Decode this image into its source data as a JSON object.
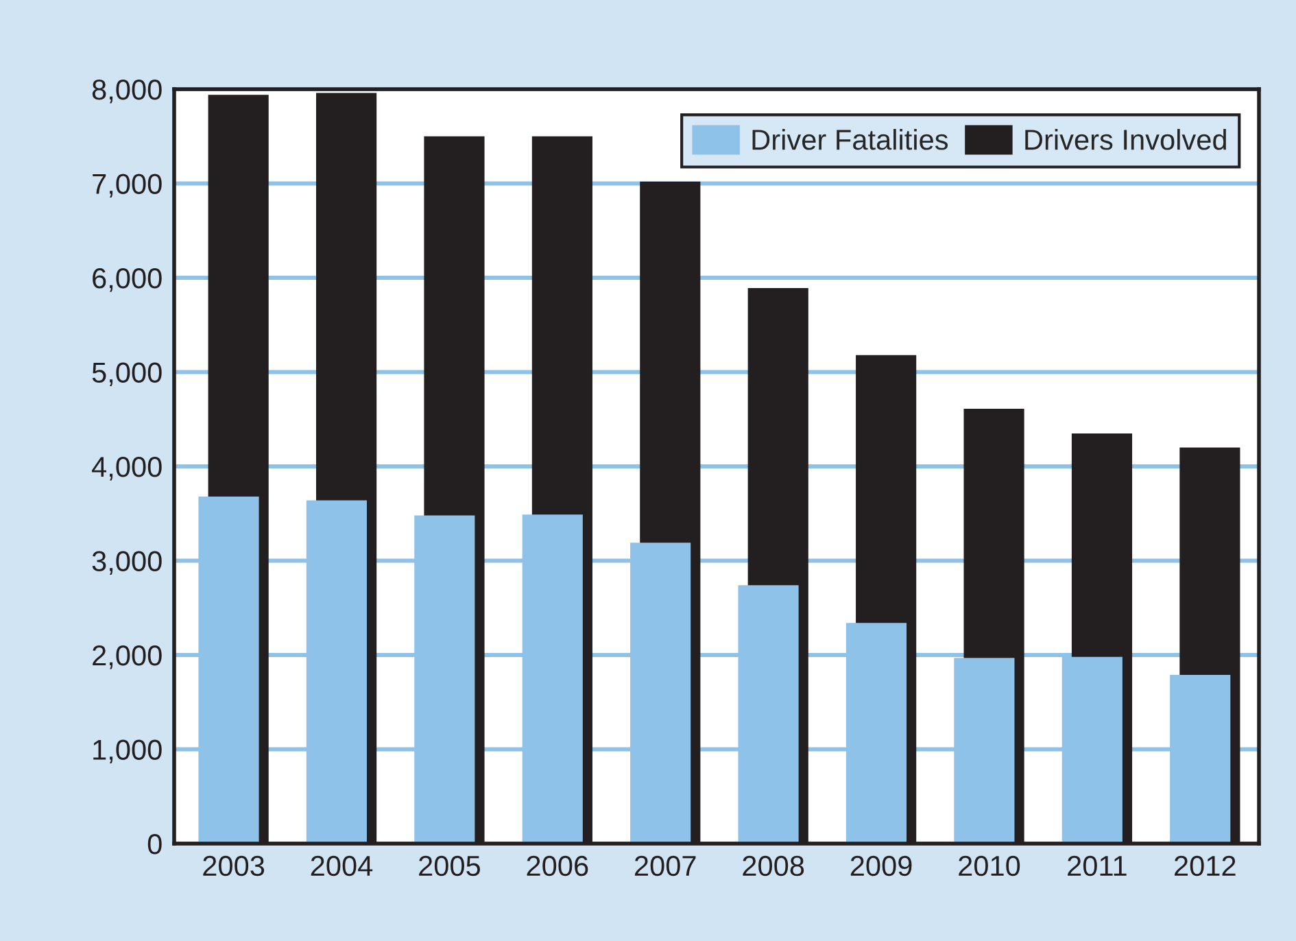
{
  "chart_data": {
    "type": "bar",
    "categories": [
      "2003",
      "2004",
      "2005",
      "2006",
      "2007",
      "2008",
      "2009",
      "2010",
      "2011",
      "2012"
    ],
    "series": [
      {
        "name": "Driver Fatalities",
        "color": "#8fc2e8",
        "values": [
          3680,
          3640,
          3480,
          3490,
          3190,
          2740,
          2340,
          1970,
          1980,
          1790
        ]
      },
      {
        "name": "Drivers Involved",
        "color": "#231f20",
        "values": [
          7940,
          7960,
          7500,
          7500,
          7020,
          5890,
          5180,
          4610,
          4350,
          4200
        ]
      }
    ],
    "ylim": [
      0,
      8000
    ],
    "yticks": [
      {
        "value": 0,
        "label": "0"
      },
      {
        "value": 1000,
        "label": "1,000"
      },
      {
        "value": 2000,
        "label": "2,000"
      },
      {
        "value": 3000,
        "label": "3,000"
      },
      {
        "value": 4000,
        "label": "4,000"
      },
      {
        "value": 5000,
        "label": "5,000"
      },
      {
        "value": 6000,
        "label": "6,000"
      },
      {
        "value": 7000,
        "label": "7,000"
      },
      {
        "value": 8000,
        "label": "8,000"
      }
    ],
    "grid": "y",
    "legend": "top right"
  }
}
